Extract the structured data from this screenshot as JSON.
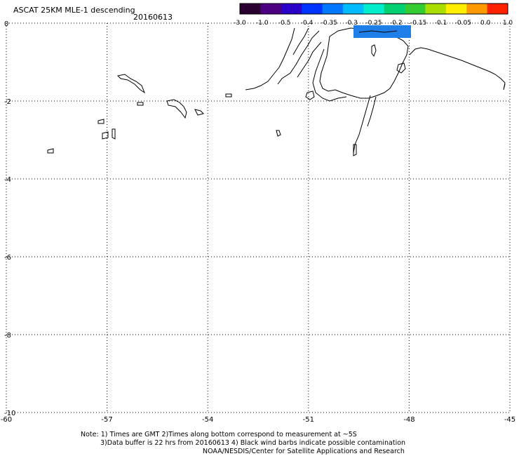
{
  "header": {
    "title": "ASCAT 25KM MLE-1 descending",
    "date": "20160613"
  },
  "colorbar": {
    "labels": [
      "-3.0",
      "-1.0",
      "-0.5",
      "-0.4",
      "-0.35",
      "-0.3",
      "-0.25",
      "-0.2",
      "-0.15",
      "-0.1",
      "-0.05",
      "0.0",
      "1.0"
    ],
    "colors": [
      "#2a0030",
      "#4b0082",
      "#2a00c8",
      "#0033ff",
      "#0077ff",
      "#00bbff",
      "#00eecc",
      "#00d070",
      "#33cc33",
      "#aadd00",
      "#ffee00",
      "#ff9900",
      "#ff2200"
    ]
  },
  "map": {
    "lon_labels": [
      "-60",
      "-57",
      "-54",
      "-51",
      "-48",
      "-45"
    ],
    "lat_labels": [
      "0",
      "-2",
      "-4",
      "-6",
      "-8",
      "-10"
    ],
    "data_patch_color": "#1e7fe8"
  },
  "notes": {
    "line1": "Note: 1) Times are GMT 2)Times along bottom correspond to measurement at ~5S",
    "line2": "3)Data buffer is 22 hrs from 20160613 4) Black wind barbs indicate possible contamination",
    "line3": "NOAA/NESDIS/Center for Satellite Applications and Research"
  }
}
